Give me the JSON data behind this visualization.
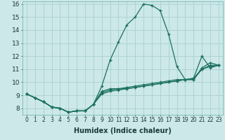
{
  "title": "",
  "xlabel": "Humidex (Indice chaleur)",
  "bg_color": "#cce8e8",
  "grid_color": "#aad0d0",
  "line_color": "#1a7060",
  "xlim": [
    -0.5,
    23.5
  ],
  "ylim": [
    7.5,
    16.2
  ],
  "xticks": [
    0,
    1,
    2,
    3,
    4,
    5,
    6,
    7,
    8,
    9,
    10,
    11,
    12,
    13,
    14,
    15,
    16,
    17,
    18,
    19,
    20,
    21,
    22,
    23
  ],
  "yticks": [
    8,
    9,
    10,
    11,
    12,
    13,
    14,
    15,
    16
  ],
  "series": [
    [
      9.1,
      8.8,
      8.5,
      8.1,
      8.0,
      7.7,
      7.8,
      7.8,
      8.3,
      9.3,
      9.5,
      9.5,
      9.5,
      9.6,
      9.7,
      9.8,
      9.9,
      10.0,
      10.1,
      10.2,
      10.2,
      11.1,
      11.5,
      11.3
    ],
    [
      9.1,
      8.8,
      8.5,
      8.1,
      8.0,
      7.7,
      7.8,
      7.8,
      8.3,
      9.7,
      11.7,
      13.1,
      14.4,
      15.0,
      16.0,
      15.9,
      15.5,
      13.7,
      11.2,
      10.2,
      10.3,
      12.0,
      11.1,
      11.3
    ],
    [
      9.1,
      8.8,
      8.5,
      8.1,
      8.0,
      7.7,
      7.8,
      7.8,
      8.3,
      9.2,
      9.4,
      9.5,
      9.6,
      9.7,
      9.8,
      9.9,
      10.0,
      10.1,
      10.2,
      10.2,
      10.3,
      11.0,
      11.3,
      11.3
    ],
    [
      9.1,
      8.8,
      8.5,
      8.1,
      8.0,
      7.7,
      7.8,
      7.8,
      8.3,
      9.1,
      9.3,
      9.4,
      9.5,
      9.6,
      9.7,
      9.8,
      9.9,
      10.0,
      10.1,
      10.2,
      10.2,
      11.0,
      11.2,
      11.3
    ]
  ],
  "xlabel_fontsize": 7,
  "tick_fontsize": 5.5,
  "ytick_fontsize": 6.5
}
